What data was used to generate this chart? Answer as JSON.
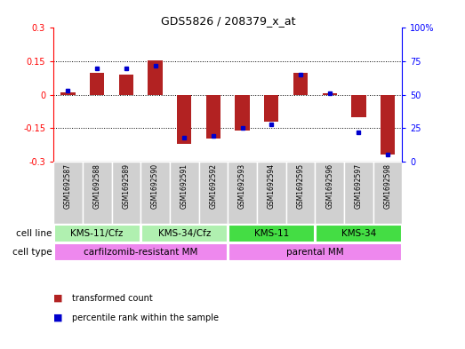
{
  "title": "GDS5826 / 208379_x_at",
  "samples": [
    "GSM1692587",
    "GSM1692588",
    "GSM1692589",
    "GSM1692590",
    "GSM1692591",
    "GSM1692592",
    "GSM1692593",
    "GSM1692594",
    "GSM1692595",
    "GSM1692596",
    "GSM1692597",
    "GSM1692598"
  ],
  "red_values": [
    0.01,
    0.1,
    0.09,
    0.155,
    -0.22,
    -0.195,
    -0.16,
    -0.12,
    0.1,
    0.005,
    -0.1,
    -0.27
  ],
  "blue_values": [
    53,
    70,
    70,
    72,
    18,
    19,
    25,
    28,
    65,
    51,
    22,
    5
  ],
  "ylim_left": [
    -0.3,
    0.3
  ],
  "ylim_right": [
    0,
    100
  ],
  "yticks_left": [
    -0.3,
    -0.15,
    0.0,
    0.15,
    0.3
  ],
  "yticks_right": [
    0,
    25,
    50,
    75,
    100
  ],
  "ytick_labels_left": [
    "-0.3",
    "-0.15",
    "0",
    "0.15",
    "0.3"
  ],
  "ytick_labels_right": [
    "0",
    "25",
    "50",
    "75",
    "100%"
  ],
  "hlines": [
    0.15,
    0.0,
    -0.15
  ],
  "bar_color": "#b22222",
  "dot_color": "#0000cd",
  "cell_line_groups": [
    {
      "label": "KMS-11/Cfz",
      "start": 0,
      "end": 3,
      "color": "#b0f0b0"
    },
    {
      "label": "KMS-34/Cfz",
      "start": 3,
      "end": 6,
      "color": "#b0f0b0"
    },
    {
      "label": "KMS-11",
      "start": 6,
      "end": 9,
      "color": "#44dd44"
    },
    {
      "label": "KMS-34",
      "start": 9,
      "end": 12,
      "color": "#44dd44"
    }
  ],
  "cell_type_groups": [
    {
      "label": "carfilzomib-resistant MM",
      "start": 0,
      "end": 6,
      "color": "#ee88ee"
    },
    {
      "label": "parental MM",
      "start": 6,
      "end": 12,
      "color": "#ee88ee"
    }
  ],
  "cell_line_label": "cell line",
  "cell_type_label": "cell type",
  "legend_red": "transformed count",
  "legend_blue": "percentile rank within the sample",
  "sample_bg": "#d0d0d0",
  "plot_bg": "#ffffff"
}
